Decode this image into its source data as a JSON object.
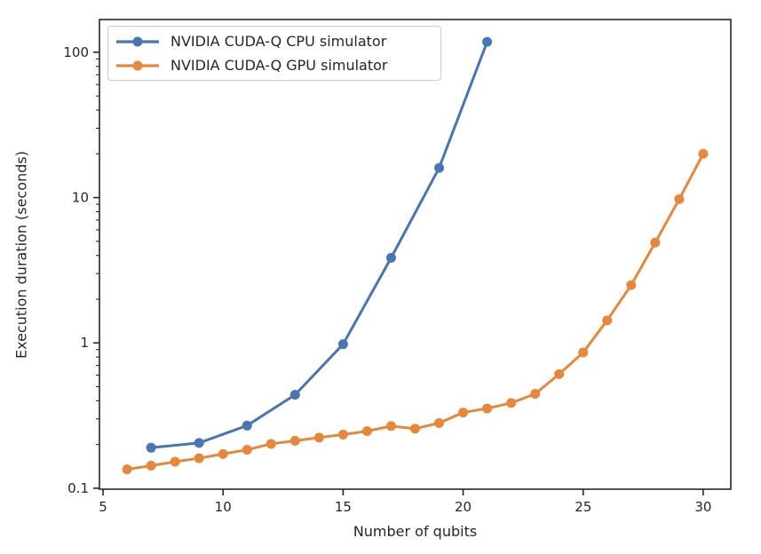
{
  "chart_data": {
    "type": "line",
    "title": "",
    "xlabel": "Number of qubits",
    "ylabel": "Execution duration (seconds)",
    "x_scale": "linear",
    "y_scale": "log",
    "xlim": [
      4.85,
      31.15
    ],
    "ylim": [
      0.0985,
      168
    ],
    "x_ticks": [
      5,
      10,
      15,
      20,
      25,
      30
    ],
    "y_ticks": [
      0.1,
      1,
      10,
      100
    ],
    "y_tick_labels": [
      "0.1",
      "1",
      "10",
      "100"
    ],
    "grid": false,
    "legend_position": "upper left",
    "series": [
      {
        "name": "NVIDIA CUDA-Q CPU simulator",
        "color": "#4676b4",
        "marker": "circle",
        "x": [
          7,
          9,
          11,
          13,
          15,
          17,
          19,
          21
        ],
        "y": [
          0.19,
          0.205,
          0.27,
          0.44,
          0.98,
          3.85,
          16,
          118
        ]
      },
      {
        "name": "NVIDIA CUDA-Q GPU simulator",
        "color": "#e8873c",
        "marker": "circle",
        "x": [
          6,
          7,
          8,
          9,
          10,
          11,
          12,
          13,
          14,
          15,
          16,
          17,
          18,
          19,
          20,
          21,
          22,
          23,
          24,
          25,
          26,
          27,
          28,
          29,
          30
        ],
        "y": [
          0.135,
          0.143,
          0.152,
          0.161,
          0.172,
          0.184,
          0.202,
          0.212,
          0.223,
          0.234,
          0.247,
          0.268,
          0.257,
          0.281,
          0.332,
          0.354,
          0.386,
          0.446,
          0.61,
          0.86,
          1.43,
          2.5,
          4.9,
          9.75,
          20
        ]
      }
    ]
  },
  "colors": {
    "axis": "#262626",
    "legend_border": "#cccccc",
    "background": "#ffffff"
  }
}
